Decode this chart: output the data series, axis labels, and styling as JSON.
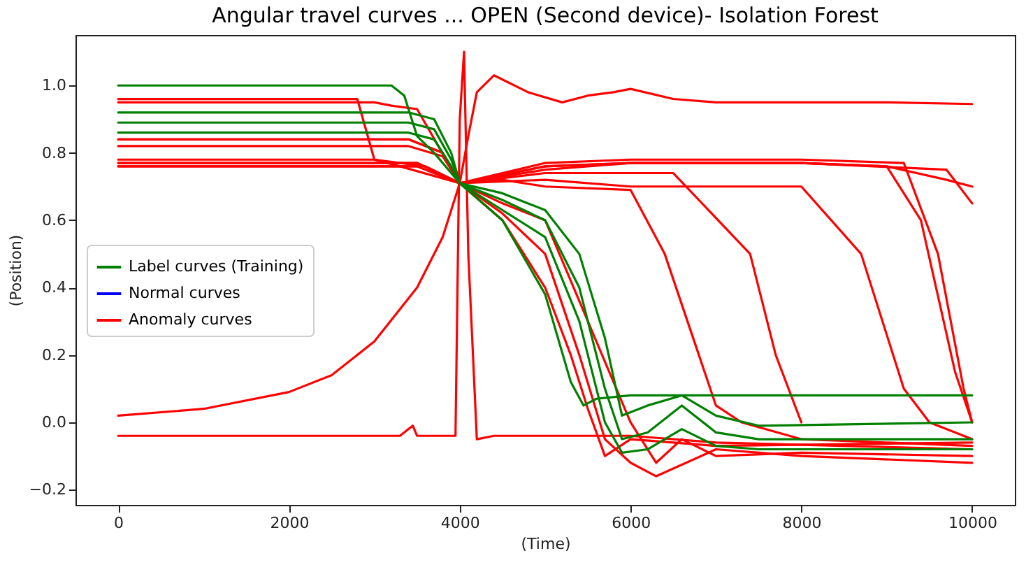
{
  "chart_data": {
    "type": "line",
    "title": "Angular travel curves ... OPEN (Second device)- Isolation Forest",
    "xlabel": "(Time)",
    "ylabel": "(Position)",
    "xlim": [
      -500,
      10500
    ],
    "ylim": [
      -0.245,
      1.15
    ],
    "xticks": [
      0,
      2000,
      4000,
      6000,
      8000,
      10000
    ],
    "yticks": [
      {
        "value": -0.2,
        "label": "−0.2"
      },
      {
        "value": 0,
        "label": "0.0"
      },
      {
        "value": 0.2,
        "label": "0.2"
      },
      {
        "value": 0.4,
        "label": "0.4"
      },
      {
        "value": 0.6,
        "label": "0.6"
      },
      {
        "value": 0.8,
        "label": "0.8"
      },
      {
        "value": 1,
        "label": "1.0"
      }
    ],
    "grid": false,
    "legend": "left",
    "line_style": "solid",
    "marker": "none",
    "series": [
      {
        "name": "Label curves (Training)",
        "color": "#008000",
        "x": [
          0,
          3200,
          3350,
          3500,
          3700,
          4000,
          4500,
          5000,
          5300,
          5450,
          5600,
          6000,
          7000,
          8000,
          10000
        ],
        "values": [
          1.0,
          1.0,
          0.97,
          0.85,
          0.8,
          0.71,
          0.6,
          0.38,
          0.12,
          0.05,
          0.07,
          0.08,
          0.08,
          0.08,
          0.08
        ]
      },
      {
        "color": "#008000",
        "x": [
          0,
          3400,
          3700,
          3900,
          4000,
          4500,
          5000,
          5400,
          5700,
          5900,
          6200,
          6600,
          7000,
          7500,
          10000
        ],
        "values": [
          0.92,
          0.92,
          0.9,
          0.8,
          0.71,
          0.68,
          0.63,
          0.5,
          0.25,
          0.02,
          0.05,
          0.08,
          0.02,
          -0.01,
          0.0
        ]
      },
      {
        "color": "#008000",
        "x": [
          0,
          3400,
          3700,
          3900,
          4000,
          4500,
          5000,
          5400,
          5700,
          5900,
          6200,
          6600,
          7000,
          7500,
          10000
        ],
        "values": [
          0.89,
          0.89,
          0.87,
          0.78,
          0.71,
          0.66,
          0.6,
          0.4,
          0.1,
          -0.05,
          -0.03,
          0.05,
          -0.03,
          -0.05,
          -0.05
        ]
      },
      {
        "color": "#008000",
        "x": [
          0,
          3400,
          3700,
          3900,
          4000,
          4500,
          5000,
          5400,
          5700,
          5900,
          6200,
          6600,
          7000,
          7500,
          10000
        ],
        "values": [
          0.86,
          0.86,
          0.84,
          0.76,
          0.71,
          0.63,
          0.55,
          0.3,
          0.0,
          -0.09,
          -0.08,
          -0.02,
          -0.07,
          -0.08,
          -0.08
        ]
      },
      {
        "name": "Normal curves",
        "color": "#0000ff"
      },
      {
        "name": "Anomaly curves",
        "color": "#ff0000",
        "x": [
          0,
          3300,
          3400,
          3450,
          3500,
          3950,
          4000,
          4050,
          4100,
          4200,
          4400,
          5000,
          6000,
          7000,
          10000
        ],
        "values": [
          -0.04,
          -0.04,
          -0.02,
          -0.01,
          -0.04,
          -0.04,
          0.9,
          1.1,
          0.5,
          -0.05,
          -0.04,
          -0.04,
          -0.04,
          -0.06,
          -0.08
        ]
      },
      {
        "color": "#ff0000",
        "x": [
          0,
          1000,
          2000,
          2500,
          3000,
          3500,
          3800,
          4000,
          4100,
          4200,
          4400,
          4800,
          5200,
          5500,
          5800,
          6000,
          6500,
          7000,
          8000,
          9000,
          10000
        ],
        "values": [
          0.02,
          0.04,
          0.09,
          0.14,
          0.24,
          0.4,
          0.55,
          0.71,
          0.85,
          0.98,
          1.03,
          0.98,
          0.95,
          0.97,
          0.98,
          0.99,
          0.96,
          0.95,
          0.95,
          0.95,
          0.945
        ]
      },
      {
        "color": "#ff0000",
        "x": [
          0,
          2800,
          3000,
          3300,
          4000,
          5000,
          6000,
          8000,
          9200,
          9600,
          9900,
          10000
        ],
        "values": [
          0.96,
          0.96,
          0.78,
          0.76,
          0.71,
          0.77,
          0.78,
          0.78,
          0.77,
          0.5,
          0.1,
          0.0
        ]
      },
      {
        "color": "#ff0000",
        "x": [
          0,
          3000,
          3200,
          3500,
          4000,
          5000,
          6000,
          8000,
          9700,
          10000
        ],
        "values": [
          0.95,
          0.95,
          0.94,
          0.93,
          0.71,
          0.76,
          0.77,
          0.77,
          0.75,
          0.65
        ]
      },
      {
        "color": "#ff0000",
        "x": [
          0,
          3400,
          3800,
          4000,
          5000,
          6500,
          7400,
          7700,
          8000
        ],
        "values": [
          0.84,
          0.84,
          0.8,
          0.71,
          0.74,
          0.74,
          0.5,
          0.2,
          0.0
        ]
      },
      {
        "color": "#ff0000",
        "x": [
          0,
          3400,
          3800,
          4000,
          4500,
          5000,
          5400,
          5700,
          6000,
          6300,
          7000,
          8000,
          10000
        ],
        "values": [
          0.84,
          0.84,
          0.8,
          0.71,
          0.62,
          0.5,
          0.2,
          -0.05,
          -0.12,
          -0.16,
          -0.08,
          -0.1,
          -0.12
        ]
      },
      {
        "color": "#ff0000",
        "x": [
          0,
          3400,
          3800,
          4000,
          4500,
          5000,
          5500,
          6000,
          6300,
          6600,
          7000,
          8000,
          10000
        ],
        "values": [
          0.82,
          0.82,
          0.79,
          0.71,
          0.65,
          0.6,
          0.3,
          0.0,
          -0.12,
          -0.05,
          -0.1,
          -0.09,
          -0.1
        ]
      },
      {
        "color": "#ff0000",
        "x": [
          0,
          3000,
          3600,
          4000,
          4500,
          5000,
          5300,
          5500,
          5700,
          6000,
          7000,
          10000
        ],
        "values": [
          0.78,
          0.78,
          0.76,
          0.71,
          0.6,
          0.4,
          0.2,
          0.04,
          -0.1,
          -0.05,
          -0.07,
          -0.06
        ]
      },
      {
        "color": "#ff0000",
        "x": [
          0,
          3500,
          4000,
          4500,
          5000,
          6000,
          6400,
          6800,
          7000,
          7300,
          8000,
          10000
        ],
        "values": [
          0.77,
          0.77,
          0.71,
          0.72,
          0.7,
          0.69,
          0.5,
          0.2,
          0.05,
          0.0,
          -0.05,
          -0.07
        ]
      },
      {
        "color": "#ff0000",
        "x": [
          0,
          3500,
          4000,
          5000,
          6000,
          7000,
          8000,
          8700,
          9200,
          9500,
          10000
        ],
        "values": [
          0.77,
          0.77,
          0.71,
          0.72,
          0.7,
          0.7,
          0.7,
          0.5,
          0.1,
          0.0,
          -0.05
        ]
      },
      {
        "color": "#ff0000",
        "x": [
          0,
          3500,
          4000,
          5000,
          6000,
          8000,
          9000,
          9400,
          9800,
          10000
        ],
        "values": [
          0.76,
          0.76,
          0.71,
          0.75,
          0.77,
          0.77,
          0.76,
          0.6,
          0.15,
          0.0
        ]
      },
      {
        "color": "#ff0000",
        "x": [
          0,
          3500,
          4000,
          5000,
          6000,
          8000,
          9000,
          9700,
          10000
        ],
        "values": [
          0.76,
          0.76,
          0.71,
          0.76,
          0.77,
          0.77,
          0.76,
          0.72,
          0.7
        ]
      }
    ]
  }
}
